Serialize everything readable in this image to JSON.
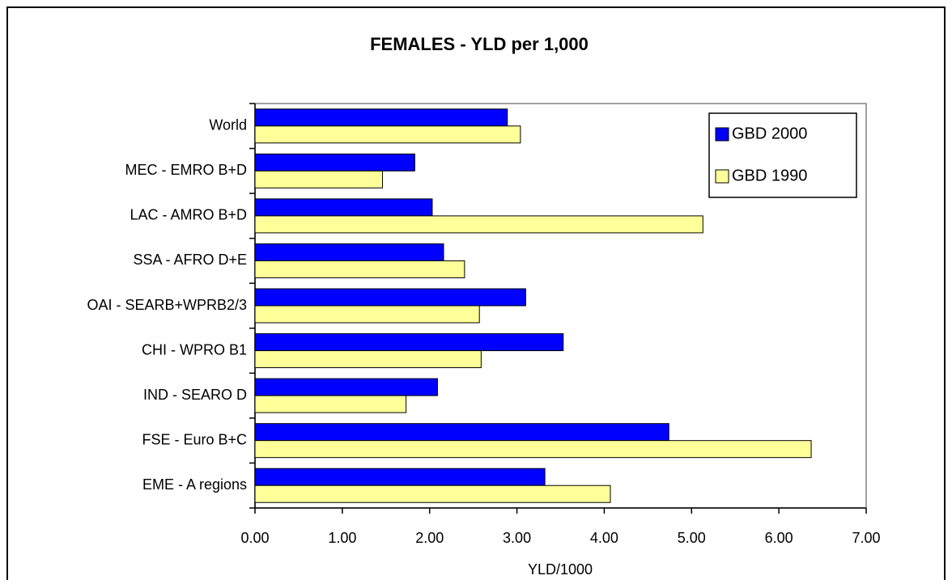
{
  "chart_data": {
    "type": "hbar",
    "title": "FEMALES - YLD per 1,000",
    "x_label": "YLD/1000",
    "categories": [
      "World",
      "MEC - EMRO B+D",
      "LAC - AMRO B+D",
      "SSA - AFRO D+E",
      "OAI - SEARB+WPRB2/3",
      "CHI - WPRO B1",
      "IND - SEARO D",
      "FSE - Euro B+C",
      "EME - A regions"
    ],
    "series": [
      {
        "name": "GBD 2000",
        "color": "#0000ff",
        "values": [
          2.89,
          1.83,
          2.03,
          2.16,
          3.1,
          3.53,
          2.09,
          4.74,
          3.32
        ]
      },
      {
        "name": "GBD 1990",
        "color": "#ffff99",
        "values": [
          3.04,
          1.46,
          5.13,
          2.4,
          2.57,
          2.59,
          1.73,
          6.37,
          4.07
        ]
      }
    ],
    "xlim": [
      0,
      7
    ],
    "xticks": [
      {
        "value": 0,
        "label": "0.00"
      },
      {
        "value": 1,
        "label": "1.00"
      },
      {
        "value": 2,
        "label": "2.00"
      },
      {
        "value": 3,
        "label": "3.00"
      },
      {
        "value": 4,
        "label": "4.00"
      },
      {
        "value": 5,
        "label": "5.00"
      },
      {
        "value": 6,
        "label": "6.00"
      },
      {
        "value": 7,
        "label": "7.00"
      }
    ],
    "legend": "top-right"
  }
}
